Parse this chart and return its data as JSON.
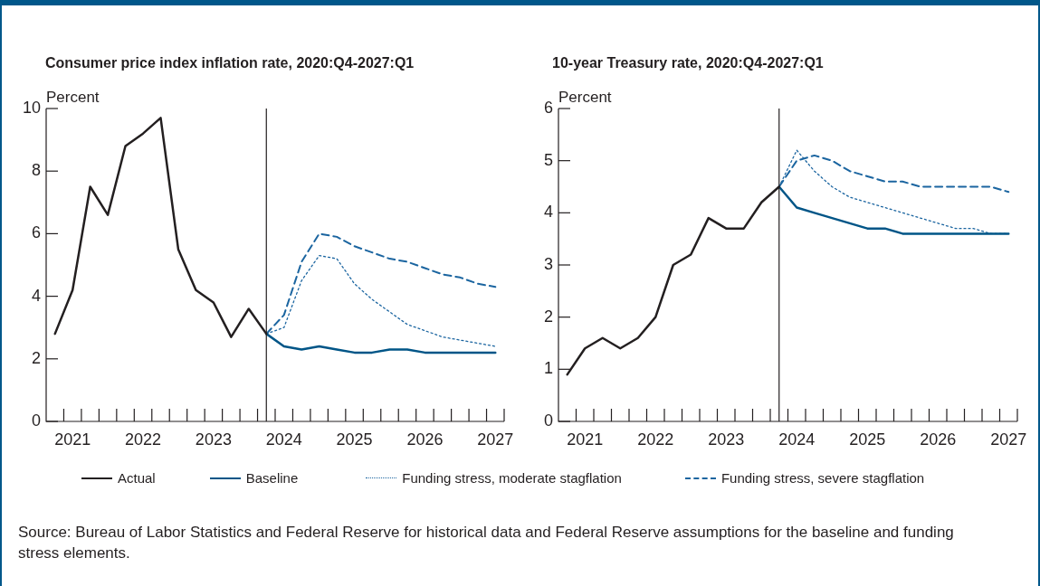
{
  "chart_data": [
    {
      "type": "line",
      "title": "Consumer price index inflation rate, 2020:Q4-2027:Q1",
      "ylabel": "Percent",
      "x": [
        2020.875,
        2021.125,
        2021.375,
        2021.625,
        2021.875,
        2022.125,
        2022.375,
        2022.625,
        2022.875,
        2023.125,
        2023.375,
        2023.625,
        2023.875,
        2024.125,
        2024.375,
        2024.625,
        2024.875,
        2025.125,
        2025.375,
        2025.625,
        2025.875,
        2026.125,
        2026.375,
        2026.625,
        2026.875,
        2027.125
      ],
      "xlim": [
        2020.75,
        2027.25
      ],
      "xticks": [
        {
          "value": 2021.125,
          "label": "2021"
        },
        {
          "value": 2022.125,
          "label": "2022"
        },
        {
          "value": 2023.125,
          "label": "2023"
        },
        {
          "value": 2024.125,
          "label": "2024"
        },
        {
          "value": 2025.125,
          "label": "2025"
        },
        {
          "value": 2026.125,
          "label": "2026"
        },
        {
          "value": 2027.125,
          "label": "2027"
        },
        {
          "value": 2021,
          "label": null
        },
        {
          "value": 2021.25,
          "label": null
        },
        {
          "value": 2021.5,
          "label": null
        },
        {
          "value": 2021.75,
          "label": null
        },
        {
          "value": 2022,
          "label": null
        },
        {
          "value": 2022.25,
          "label": null
        },
        {
          "value": 2022.5,
          "label": null
        },
        {
          "value": 2022.75,
          "label": null
        },
        {
          "value": 2023,
          "label": null
        },
        {
          "value": 2023.25,
          "label": null
        },
        {
          "value": 2023.5,
          "label": null
        },
        {
          "value": 2023.75,
          "label": null
        },
        {
          "value": 2024,
          "label": null
        },
        {
          "value": 2024.25,
          "label": null
        },
        {
          "value": 2024.5,
          "label": null
        },
        {
          "value": 2024.75,
          "label": null
        },
        {
          "value": 2025,
          "label": null
        },
        {
          "value": 2025.25,
          "label": null
        },
        {
          "value": 2025.5,
          "label": null
        },
        {
          "value": 2025.75,
          "label": null
        },
        {
          "value": 2026,
          "label": null
        },
        {
          "value": 2026.25,
          "label": null
        },
        {
          "value": 2026.5,
          "label": null
        },
        {
          "value": 2026.75,
          "label": null
        },
        {
          "value": 2027,
          "label": null
        },
        {
          "value": 2027.25,
          "label": null
        }
      ],
      "ylim": [
        0,
        10
      ],
      "yticks": [
        0,
        2,
        4,
        6,
        8,
        10
      ],
      "series": [
        {
          "name": "Actual",
          "color": "#231f20",
          "line_style": "solid",
          "values": [
            2.8,
            4.2,
            7.5,
            6.6,
            8.8,
            9.2,
            9.7,
            5.5,
            4.2,
            3.8,
            2.7,
            3.6,
            2.8,
            null,
            null,
            null,
            null,
            null,
            null,
            null,
            null,
            null,
            null,
            null,
            null,
            null
          ]
        },
        {
          "name": "Baseline",
          "color": "#005587",
          "line_style": "solid",
          "values": [
            null,
            null,
            null,
            null,
            null,
            null,
            null,
            null,
            null,
            null,
            null,
            null,
            2.8,
            2.4,
            2.3,
            2.4,
            2.3,
            2.2,
            2.2,
            2.3,
            2.3,
            2.2,
            2.2,
            2.2,
            2.2,
            2.2
          ]
        },
        {
          "name": "Funding stress, moderate stagflation",
          "color": "#1b65a0",
          "line_style": "dotted",
          "values": [
            null,
            null,
            null,
            null,
            null,
            null,
            null,
            null,
            null,
            null,
            null,
            null,
            2.8,
            3.0,
            4.5,
            5.3,
            5.2,
            4.4,
            3.9,
            3.5,
            3.1,
            2.9,
            2.7,
            2.6,
            2.5,
            2.4
          ]
        },
        {
          "name": "Funding stress, severe stagflation",
          "color": "#1b65a0",
          "line_style": "dashed",
          "values": [
            null,
            null,
            null,
            null,
            null,
            null,
            null,
            null,
            null,
            null,
            null,
            null,
            2.8,
            3.4,
            5.1,
            6.0,
            5.9,
            5.6,
            5.4,
            5.2,
            5.1,
            4.9,
            4.7,
            4.6,
            4.4,
            4.3
          ]
        }
      ],
      "ref_lines": [
        {
          "axis": "x",
          "value": 2023.875,
          "color": "#231f20"
        }
      ],
      "legend": "bottom",
      "annotations": [
        "Source: Bureau of Labor Statistics and Federal Reserve for historical data and Federal Reserve assumptions for the baseline and funding stress elements."
      ]
    },
    {
      "type": "line",
      "title": "10-year Treasury rate, 2020:Q4-2027:Q1",
      "ylabel": "Percent",
      "x": [
        2020.875,
        2021.125,
        2021.375,
        2021.625,
        2021.875,
        2022.125,
        2022.375,
        2022.625,
        2022.875,
        2023.125,
        2023.375,
        2023.625,
        2023.875,
        2024.125,
        2024.375,
        2024.625,
        2024.875,
        2025.125,
        2025.375,
        2025.625,
        2025.875,
        2026.125,
        2026.375,
        2026.625,
        2026.875,
        2027.125
      ],
      "xlim": [
        2020.75,
        2027.25
      ],
      "xticks": [
        {
          "value": 2021.125,
          "label": "2021"
        },
        {
          "value": 2022.125,
          "label": "2022"
        },
        {
          "value": 2023.125,
          "label": "2023"
        },
        {
          "value": 2024.125,
          "label": "2024"
        },
        {
          "value": 2025.125,
          "label": "2025"
        },
        {
          "value": 2026.125,
          "label": "2026"
        },
        {
          "value": 2027.125,
          "label": "2027"
        },
        {
          "value": 2021,
          "label": null
        },
        {
          "value": 2021.25,
          "label": null
        },
        {
          "value": 2021.5,
          "label": null
        },
        {
          "value": 2021.75,
          "label": null
        },
        {
          "value": 2022,
          "label": null
        },
        {
          "value": 2022.25,
          "label": null
        },
        {
          "value": 2022.5,
          "label": null
        },
        {
          "value": 2022.75,
          "label": null
        },
        {
          "value": 2023,
          "label": null
        },
        {
          "value": 2023.25,
          "label": null
        },
        {
          "value": 2023.5,
          "label": null
        },
        {
          "value": 2023.75,
          "label": null
        },
        {
          "value": 2024,
          "label": null
        },
        {
          "value": 2024.25,
          "label": null
        },
        {
          "value": 2024.5,
          "label": null
        },
        {
          "value": 2024.75,
          "label": null
        },
        {
          "value": 2025,
          "label": null
        },
        {
          "value": 2025.25,
          "label": null
        },
        {
          "value": 2025.5,
          "label": null
        },
        {
          "value": 2025.75,
          "label": null
        },
        {
          "value": 2026,
          "label": null
        },
        {
          "value": 2026.25,
          "label": null
        },
        {
          "value": 2026.5,
          "label": null
        },
        {
          "value": 2026.75,
          "label": null
        },
        {
          "value": 2027,
          "label": null
        },
        {
          "value": 2027.25,
          "label": null
        }
      ],
      "ylim": [
        0,
        6
      ],
      "yticks": [
        0,
        1,
        2,
        3,
        4,
        5,
        6
      ],
      "series": [
        {
          "name": "Actual",
          "color": "#231f20",
          "line_style": "solid",
          "values": [
            0.9,
            1.4,
            1.6,
            1.4,
            1.6,
            2.0,
            3.0,
            3.2,
            3.9,
            3.7,
            3.7,
            4.2,
            4.5,
            null,
            null,
            null,
            null,
            null,
            null,
            null,
            null,
            null,
            null,
            null,
            null,
            null
          ]
        },
        {
          "name": "Baseline",
          "color": "#005587",
          "line_style": "solid",
          "values": [
            null,
            null,
            null,
            null,
            null,
            null,
            null,
            null,
            null,
            null,
            null,
            null,
            4.5,
            4.1,
            4.0,
            3.9,
            3.8,
            3.7,
            3.7,
            3.6,
            3.6,
            3.6,
            3.6,
            3.6,
            3.6,
            3.6
          ]
        },
        {
          "name": "Funding stress, moderate stagflation",
          "color": "#1b65a0",
          "line_style": "dotted",
          "values": [
            null,
            null,
            null,
            null,
            null,
            null,
            null,
            null,
            null,
            null,
            null,
            null,
            4.5,
            5.2,
            4.8,
            4.5,
            4.3,
            4.2,
            4.1,
            4.0,
            3.9,
            3.8,
            3.7,
            3.7,
            3.6,
            3.6
          ]
        },
        {
          "name": "Funding stress, severe stagflation",
          "color": "#1b65a0",
          "line_style": "dashed",
          "values": [
            null,
            null,
            null,
            null,
            null,
            null,
            null,
            null,
            null,
            null,
            null,
            null,
            4.5,
            5.0,
            5.1,
            5.0,
            4.8,
            4.7,
            4.6,
            4.6,
            4.5,
            4.5,
            4.5,
            4.5,
            4.5,
            4.4
          ]
        }
      ],
      "ref_lines": [
        {
          "axis": "x",
          "value": 2023.875,
          "color": "#231f20"
        }
      ],
      "legend": "bottom"
    }
  ]
}
